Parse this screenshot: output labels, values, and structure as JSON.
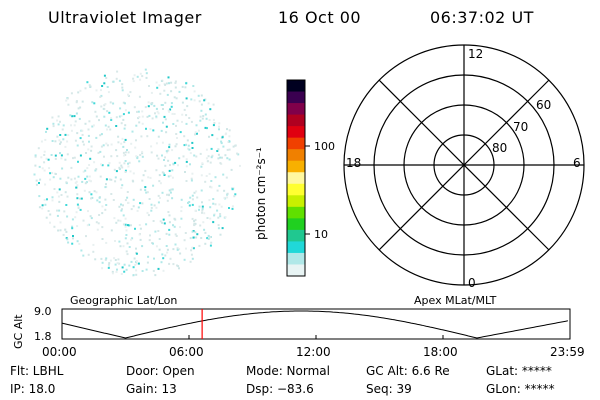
{
  "header": {
    "instrument": "Ultraviolet Imager",
    "date": "16 Oct 00",
    "time": "06:37:02 UT"
  },
  "colorbar": {
    "unit_label": "photon cm⁻²s⁻¹",
    "ticks": [
      "100",
      "10"
    ],
    "colors": [
      "#000020",
      "#3a0050",
      "#80004a",
      "#b00020",
      "#e00010",
      "#f04000",
      "#f08000",
      "#f8b000",
      "#fff8a0",
      "#ffff30",
      "#c8f000",
      "#60e000",
      "#20d020",
      "#20c890",
      "#20d8d8",
      "#b0e8e8",
      "#e8f4f4"
    ]
  },
  "polar": {
    "labels": {
      "top": "12",
      "left": "18",
      "right": "6",
      "bottom": "0"
    },
    "rings": [
      "60",
      "70",
      "80"
    ]
  },
  "alt_plot": {
    "left_title": "Geographic Lat/Lon",
    "right_title": "Apex MLat/MLT",
    "ylabel": "GC Alt",
    "yticks": [
      "9.0",
      "1.8"
    ],
    "xticks": [
      "00:00",
      "06:00",
      "12:00",
      "18:00",
      "23:59"
    ],
    "marker_time_hours": 6.62,
    "marker_color": "#ff0000"
  },
  "info": {
    "flt": "Flt: LBHL",
    "ip": "IP: 18.0",
    "door": "Door: Open",
    "gain": "Gain: 13",
    "mode": "Mode: Normal",
    "dsp": "Dsp:  −83.6",
    "gcalt": "GC Alt: 6.6 Re",
    "seq": "Seq: 39",
    "glat": "GLat: *****",
    "glon": "GLon: *****"
  }
}
